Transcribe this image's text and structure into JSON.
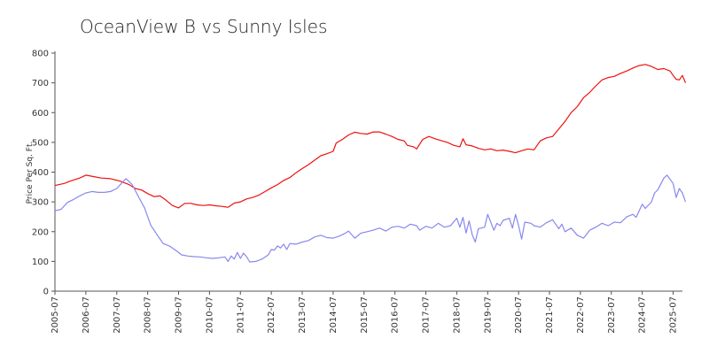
{
  "chart_data": {
    "type": "line",
    "title": "OceanView B vs Sunny Isles",
    "xlabel": "",
    "ylabel": "Price Per Sq. Ft.",
    "ylim": [
      0,
      800
    ],
    "yticks": [
      0,
      100,
      200,
      300,
      400,
      500,
      600,
      700,
      800
    ],
    "xticks": [
      "2005-07",
      "2006-07",
      "2007-07",
      "2008-07",
      "2009-07",
      "2010-07",
      "2011-07",
      "2012-07",
      "2013-07",
      "2014-07",
      "2015-07",
      "2016-07",
      "2017-07",
      "2018-07",
      "2019-07",
      "2020-07",
      "2021-07",
      "2022-07",
      "2023-07",
      "2024-07",
      "2025-07"
    ],
    "xrange": [
      2005.5,
      2025.8
    ],
    "series": [
      {
        "color": "#ee1111",
        "points": [
          [
            2005.5,
            355
          ],
          [
            2005.8,
            362
          ],
          [
            2006.0,
            370
          ],
          [
            2006.3,
            380
          ],
          [
            2006.5,
            390
          ],
          [
            2006.8,
            384
          ],
          [
            2007.0,
            380
          ],
          [
            2007.3,
            378
          ],
          [
            2007.6,
            370
          ],
          [
            2007.9,
            358
          ],
          [
            2008.1,
            345
          ],
          [
            2008.3,
            340
          ],
          [
            2008.5,
            328
          ],
          [
            2008.7,
            318
          ],
          [
            2008.9,
            320
          ],
          [
            2009.1,
            305
          ],
          [
            2009.3,
            288
          ],
          [
            2009.5,
            280
          ],
          [
            2009.7,
            295
          ],
          [
            2009.9,
            295
          ],
          [
            2010.1,
            290
          ],
          [
            2010.3,
            288
          ],
          [
            2010.5,
            290
          ],
          [
            2010.7,
            287
          ],
          [
            2010.9,
            285
          ],
          [
            2011.1,
            282
          ],
          [
            2011.3,
            296
          ],
          [
            2011.5,
            300
          ],
          [
            2011.7,
            310
          ],
          [
            2011.9,
            315
          ],
          [
            2012.1,
            323
          ],
          [
            2012.3,
            335
          ],
          [
            2012.5,
            347
          ],
          [
            2012.7,
            358
          ],
          [
            2012.9,
            372
          ],
          [
            2013.1,
            382
          ],
          [
            2013.3,
            398
          ],
          [
            2013.5,
            412
          ],
          [
            2013.7,
            425
          ],
          [
            2013.9,
            440
          ],
          [
            2014.1,
            455
          ],
          [
            2014.3,
            462
          ],
          [
            2014.5,
            470
          ],
          [
            2014.6,
            498
          ],
          [
            2014.8,
            510
          ],
          [
            2015.0,
            525
          ],
          [
            2015.2,
            534
          ],
          [
            2015.4,
            530
          ],
          [
            2015.6,
            528
          ],
          [
            2015.8,
            535
          ],
          [
            2016.0,
            535
          ],
          [
            2016.2,
            528
          ],
          [
            2016.4,
            520
          ],
          [
            2016.6,
            510
          ],
          [
            2016.8,
            505
          ],
          [
            2016.9,
            490
          ],
          [
            2017.1,
            485
          ],
          [
            2017.2,
            478
          ],
          [
            2017.4,
            510
          ],
          [
            2017.6,
            520
          ],
          [
            2017.8,
            512
          ],
          [
            2018.0,
            506
          ],
          [
            2018.2,
            500
          ],
          [
            2018.4,
            490
          ],
          [
            2018.6,
            485
          ],
          [
            2018.7,
            512
          ],
          [
            2018.8,
            492
          ],
          [
            2019.0,
            488
          ],
          [
            2019.2,
            480
          ],
          [
            2019.4,
            475
          ],
          [
            2019.6,
            478
          ],
          [
            2019.8,
            472
          ],
          [
            2020.0,
            474
          ],
          [
            2020.2,
            470
          ],
          [
            2020.4,
            465
          ],
          [
            2020.6,
            472
          ],
          [
            2020.8,
            478
          ],
          [
            2021.0,
            475
          ],
          [
            2021.2,
            505
          ],
          [
            2021.4,
            515
          ],
          [
            2021.6,
            520
          ],
          [
            2021.8,
            545
          ],
          [
            2022.0,
            570
          ],
          [
            2022.2,
            600
          ],
          [
            2022.4,
            620
          ],
          [
            2022.6,
            650
          ],
          [
            2022.8,
            668
          ],
          [
            2023.0,
            690
          ],
          [
            2023.2,
            710
          ],
          [
            2023.4,
            718
          ],
          [
            2023.6,
            722
          ],
          [
            2023.8,
            732
          ],
          [
            2024.0,
            740
          ],
          [
            2024.2,
            750
          ],
          [
            2024.4,
            758
          ],
          [
            2024.6,
            762
          ],
          [
            2024.8,
            755
          ],
          [
            2025.0,
            745
          ],
          [
            2025.2,
            748
          ],
          [
            2025.4,
            740
          ],
          [
            2025.5,
            725
          ],
          [
            2025.6,
            712
          ],
          [
            2025.7,
            710
          ],
          [
            2025.8,
            725
          ],
          [
            2025.9,
            700
          ]
        ]
      },
      {
        "color": "#8888ee",
        "points": [
          [
            2005.5,
            270
          ],
          [
            2005.7,
            275
          ],
          [
            2005.9,
            298
          ],
          [
            2006.1,
            308
          ],
          [
            2006.3,
            320
          ],
          [
            2006.5,
            330
          ],
          [
            2006.7,
            335
          ],
          [
            2006.9,
            332
          ],
          [
            2007.1,
            332
          ],
          [
            2007.3,
            335
          ],
          [
            2007.5,
            345
          ],
          [
            2007.7,
            368
          ],
          [
            2007.8,
            378
          ],
          [
            2008.0,
            358
          ],
          [
            2008.2,
            318
          ],
          [
            2008.4,
            280
          ],
          [
            2008.6,
            222
          ],
          [
            2008.8,
            190
          ],
          [
            2009.0,
            160
          ],
          [
            2009.2,
            152
          ],
          [
            2009.4,
            138
          ],
          [
            2009.6,
            122
          ],
          [
            2009.8,
            118
          ],
          [
            2010.0,
            116
          ],
          [
            2010.2,
            115
          ],
          [
            2010.4,
            112
          ],
          [
            2010.6,
            110
          ],
          [
            2010.8,
            112
          ],
          [
            2011.0,
            115
          ],
          [
            2011.1,
            100
          ],
          [
            2011.2,
            118
          ],
          [
            2011.3,
            108
          ],
          [
            2011.4,
            130
          ],
          [
            2011.5,
            110
          ],
          [
            2011.6,
            128
          ],
          [
            2011.7,
            116
          ],
          [
            2011.8,
            98
          ],
          [
            2012.0,
            100
          ],
          [
            2012.2,
            108
          ],
          [
            2012.4,
            122
          ],
          [
            2012.5,
            140
          ],
          [
            2012.6,
            138
          ],
          [
            2012.7,
            152
          ],
          [
            2012.8,
            145
          ],
          [
            2012.9,
            158
          ],
          [
            2013.0,
            140
          ],
          [
            2013.1,
            160
          ],
          [
            2013.3,
            158
          ],
          [
            2013.5,
            165
          ],
          [
            2013.7,
            170
          ],
          [
            2013.9,
            182
          ],
          [
            2014.1,
            188
          ],
          [
            2014.3,
            180
          ],
          [
            2014.5,
            178
          ],
          [
            2014.7,
            185
          ],
          [
            2014.9,
            195
          ],
          [
            2015.0,
            202
          ],
          [
            2015.2,
            178
          ],
          [
            2015.4,
            195
          ],
          [
            2015.6,
            200
          ],
          [
            2015.8,
            205
          ],
          [
            2016.0,
            212
          ],
          [
            2016.2,
            202
          ],
          [
            2016.4,
            215
          ],
          [
            2016.6,
            218
          ],
          [
            2016.8,
            212
          ],
          [
            2017.0,
            225
          ],
          [
            2017.2,
            220
          ],
          [
            2017.3,
            205
          ],
          [
            2017.5,
            218
          ],
          [
            2017.7,
            212
          ],
          [
            2017.9,
            228
          ],
          [
            2018.1,
            215
          ],
          [
            2018.3,
            220
          ],
          [
            2018.5,
            245
          ],
          [
            2018.6,
            215
          ],
          [
            2018.7,
            248
          ],
          [
            2018.8,
            195
          ],
          [
            2018.9,
            236
          ],
          [
            2019.0,
            190
          ],
          [
            2019.1,
            165
          ],
          [
            2019.2,
            210
          ],
          [
            2019.4,
            215
          ],
          [
            2019.5,
            258
          ],
          [
            2019.7,
            205
          ],
          [
            2019.8,
            228
          ],
          [
            2019.9,
            220
          ],
          [
            2020.0,
            238
          ],
          [
            2020.2,
            245
          ],
          [
            2020.3,
            212
          ],
          [
            2020.4,
            258
          ],
          [
            2020.5,
            220
          ],
          [
            2020.6,
            175
          ],
          [
            2020.7,
            232
          ],
          [
            2020.9,
            228
          ],
          [
            2021.0,
            220
          ],
          [
            2021.2,
            215
          ],
          [
            2021.4,
            230
          ],
          [
            2021.6,
            240
          ],
          [
            2021.8,
            210
          ],
          [
            2021.9,
            225
          ],
          [
            2022.0,
            200
          ],
          [
            2022.2,
            212
          ],
          [
            2022.4,
            188
          ],
          [
            2022.6,
            178
          ],
          [
            2022.8,
            205
          ],
          [
            2023.0,
            215
          ],
          [
            2023.2,
            228
          ],
          [
            2023.4,
            220
          ],
          [
            2023.6,
            232
          ],
          [
            2023.8,
            230
          ],
          [
            2024.0,
            250
          ],
          [
            2024.2,
            258
          ],
          [
            2024.3,
            248
          ],
          [
            2024.5,
            292
          ],
          [
            2024.6,
            278
          ],
          [
            2024.8,
            300
          ],
          [
            2024.9,
            330
          ],
          [
            2025.0,
            340
          ],
          [
            2025.2,
            380
          ],
          [
            2025.3,
            390
          ],
          [
            2025.5,
            362
          ],
          [
            2025.6,
            315
          ],
          [
            2025.7,
            345
          ],
          [
            2025.8,
            330
          ],
          [
            2025.9,
            300
          ]
        ]
      }
    ]
  }
}
